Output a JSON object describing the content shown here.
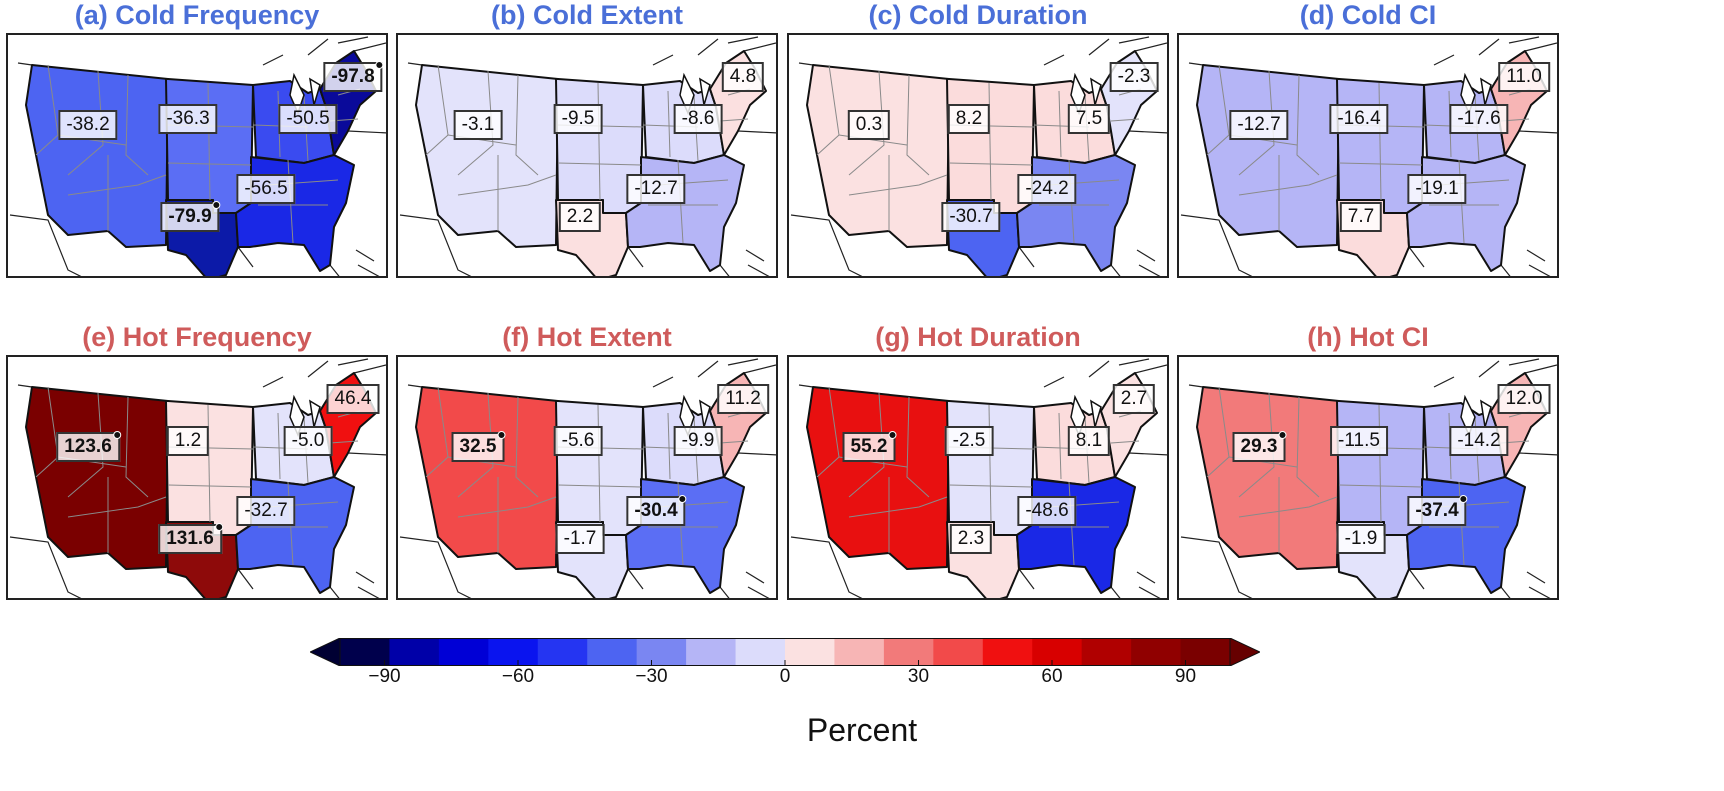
{
  "panels": [
    {
      "title": "(a) Cold Frequency",
      "kind": "cold",
      "regions": {
        "west": {
          "value": "-38.2",
          "sig": false
        },
        "central": {
          "value": "-36.3",
          "sig": false
        },
        "midwest": {
          "value": "-50.5",
          "sig": false
        },
        "northeast": {
          "value": "-97.8",
          "sig": true
        },
        "southeast": {
          "value": "-56.5",
          "sig": false
        },
        "south": {
          "value": "-79.9",
          "sig": true
        }
      },
      "colors": {
        "west": "#4d64f2",
        "central": "#5b6ef4",
        "midwest": "#3a4bf0",
        "northeast": "#0a0a9a",
        "southeast": "#1a28e6",
        "south": "#0c1aa8"
      }
    },
    {
      "title": "(b) Cold Extent",
      "kind": "cold",
      "regions": {
        "west": {
          "value": "-3.1",
          "sig": false
        },
        "central": {
          "value": "-9.5",
          "sig": false
        },
        "midwest": {
          "value": "-8.6",
          "sig": false
        },
        "northeast": {
          "value": "4.8",
          "sig": false
        },
        "southeast": {
          "value": "-12.7",
          "sig": false
        },
        "south": {
          "value": "2.2",
          "sig": false
        }
      },
      "colors": {
        "west": "#e3e3fb",
        "central": "#dcdcfb",
        "midwest": "#dcdcfb",
        "northeast": "#fbe0e0",
        "southeast": "#b5b5f6",
        "south": "#fbe0e0"
      }
    },
    {
      "title": "(c) Cold Duration",
      "kind": "cold",
      "regions": {
        "west": {
          "value": "0.3",
          "sig": false
        },
        "central": {
          "value": "8.2",
          "sig": false
        },
        "midwest": {
          "value": "7.5",
          "sig": false
        },
        "northeast": {
          "value": "-2.3",
          "sig": false
        },
        "southeast": {
          "value": "-24.2",
          "sig": false
        },
        "south": {
          "value": "-30.7",
          "sig": false
        }
      },
      "colors": {
        "west": "#fbe1e1",
        "central": "#fbdcdc",
        "midwest": "#fbdcdc",
        "northeast": "#e3e3fb",
        "southeast": "#7a86f2",
        "south": "#4d64f2"
      }
    },
    {
      "title": "(d) Cold CI",
      "kind": "cold",
      "regions": {
        "west": {
          "value": "-12.7",
          "sig": false
        },
        "central": {
          "value": "-16.4",
          "sig": false
        },
        "midwest": {
          "value": "-17.6",
          "sig": false
        },
        "northeast": {
          "value": "11.0",
          "sig": false
        },
        "southeast": {
          "value": "-19.1",
          "sig": false
        },
        "south": {
          "value": "7.7",
          "sig": false
        }
      },
      "colors": {
        "west": "#b5b5f6",
        "central": "#b5b5f6",
        "midwest": "#b5b5f6",
        "northeast": "#f7b5b5",
        "southeast": "#b5b5f6",
        "south": "#fbdcdc"
      }
    },
    {
      "title": "(e) Hot Frequency",
      "kind": "hot",
      "regions": {
        "west": {
          "value": "123.6",
          "sig": true
        },
        "central": {
          "value": "1.2",
          "sig": false
        },
        "midwest": {
          "value": "-5.0",
          "sig": false
        },
        "northeast": {
          "value": "46.4",
          "sig": false
        },
        "southeast": {
          "value": "-32.7",
          "sig": false
        },
        "south": {
          "value": "131.6",
          "sig": true
        }
      },
      "colors": {
        "west": "#7a0000",
        "central": "#fbe1e1",
        "midwest": "#e3e3fb",
        "northeast": "#f01010",
        "southeast": "#4d64f2",
        "south": "#8e0a0a"
      }
    },
    {
      "title": "(f) Hot Extent",
      "kind": "hot",
      "regions": {
        "west": {
          "value": "32.5",
          "sig": true
        },
        "central": {
          "value": "-5.6",
          "sig": false
        },
        "midwest": {
          "value": "-9.9",
          "sig": false
        },
        "northeast": {
          "value": "11.2",
          "sig": false
        },
        "southeast": {
          "value": "-30.4",
          "sig": true
        },
        "south": {
          "value": "-1.7",
          "sig": false
        }
      },
      "colors": {
        "west": "#f24a4a",
        "central": "#e3e3fb",
        "midwest": "#dcdcfb",
        "northeast": "#f7b5b5",
        "southeast": "#5b6ef4",
        "south": "#e3e3fb"
      }
    },
    {
      "title": "(g) Hot Duration",
      "kind": "hot",
      "regions": {
        "west": {
          "value": "55.2",
          "sig": true
        },
        "central": {
          "value": "-2.5",
          "sig": false
        },
        "midwest": {
          "value": "8.1",
          "sig": false
        },
        "northeast": {
          "value": "2.7",
          "sig": false
        },
        "southeast": {
          "value": "-48.6",
          "sig": false
        },
        "south": {
          "value": "2.3",
          "sig": false
        }
      },
      "colors": {
        "west": "#e81010",
        "central": "#e3e3fb",
        "midwest": "#fbdcdc",
        "northeast": "#fbe1e1",
        "southeast": "#1a28e6",
        "south": "#fbe1e1"
      }
    },
    {
      "title": "(h) Hot CI",
      "kind": "hot",
      "regions": {
        "west": {
          "value": "29.3",
          "sig": true
        },
        "central": {
          "value": "-11.5",
          "sig": false
        },
        "midwest": {
          "value": "-14.2",
          "sig": false
        },
        "northeast": {
          "value": "12.0",
          "sig": false
        },
        "southeast": {
          "value": "-37.4",
          "sig": true
        },
        "south": {
          "value": "-1.9",
          "sig": false
        }
      },
      "colors": {
        "west": "#f27a7a",
        "central": "#b5b5f6",
        "midwest": "#b5b5f6",
        "northeast": "#f7b5b5",
        "southeast": "#4d64f2",
        "south": "#e3e3fb"
      }
    }
  ],
  "colorbar": {
    "label": "Percent",
    "min": -100,
    "max": 100,
    "step": 10,
    "ticks": [
      "−90",
      "−60",
      "−30",
      "0",
      "30",
      "60",
      "90"
    ],
    "tick_values": [
      -90,
      -60,
      -30,
      0,
      30,
      60,
      90
    ],
    "colors": [
      "#00004c",
      "#0000a8",
      "#0000d6",
      "#0a14ef",
      "#2535f2",
      "#4d64f2",
      "#7a86f2",
      "#b5b5f6",
      "#dcdcfb",
      "#fbe1e1",
      "#f7b5b5",
      "#f27a7a",
      "#f24a4a",
      "#f01010",
      "#d80000",
      "#b00000",
      "#900000",
      "#7a0000"
    ],
    "lower_extend": "#000033",
    "upper_extend": "#660000"
  }
}
